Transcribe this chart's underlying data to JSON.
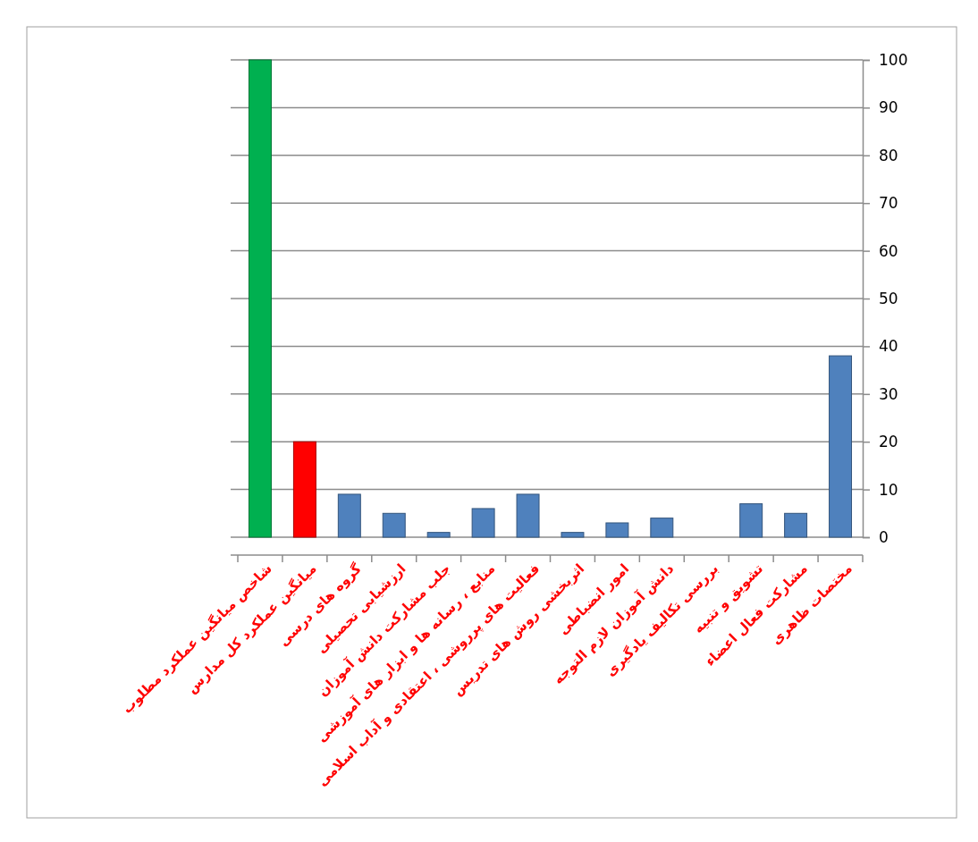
{
  "chart_data": {
    "type": "bar",
    "categories": [
      "شاخص میانگین عملکرد مطلوب",
      "میانگین عملکرد کل مدارس",
      "گروه های درسی",
      "ارزشیابی تحصیلی",
      "جلب مشارکت دانش آموزان",
      "منابع ، رسانه ها و ابزار های آموزشی",
      "فعالیت های پرروشی ، اعتقادی و آداب اسلامی",
      "اثربخشی روش های تدریس",
      "امور انضباطی",
      "دانش آموزان لازم التوجه",
      "بررسی تکالیف یادگیری",
      "تشویق و تنبیه",
      "مشارکت فعال اعضاء",
      "مختصات ظاهری"
    ],
    "values": [
      100,
      20,
      9,
      5,
      1,
      6,
      9,
      1,
      3,
      4,
      0,
      7,
      5,
      38
    ],
    "colors": [
      "#00b050",
      "#ff0000",
      "#4f81bd",
      "#4f81bd",
      "#4f81bd",
      "#4f81bd",
      "#4f81bd",
      "#4f81bd",
      "#4f81bd",
      "#4f81bd",
      "#4f81bd",
      "#4f81bd",
      "#4f81bd",
      "#4f81bd"
    ],
    "ylim": [
      0,
      100
    ],
    "yticks": [
      0,
      10,
      20,
      30,
      40,
      50,
      60,
      70,
      80,
      90,
      100
    ],
    "grid": "y"
  }
}
